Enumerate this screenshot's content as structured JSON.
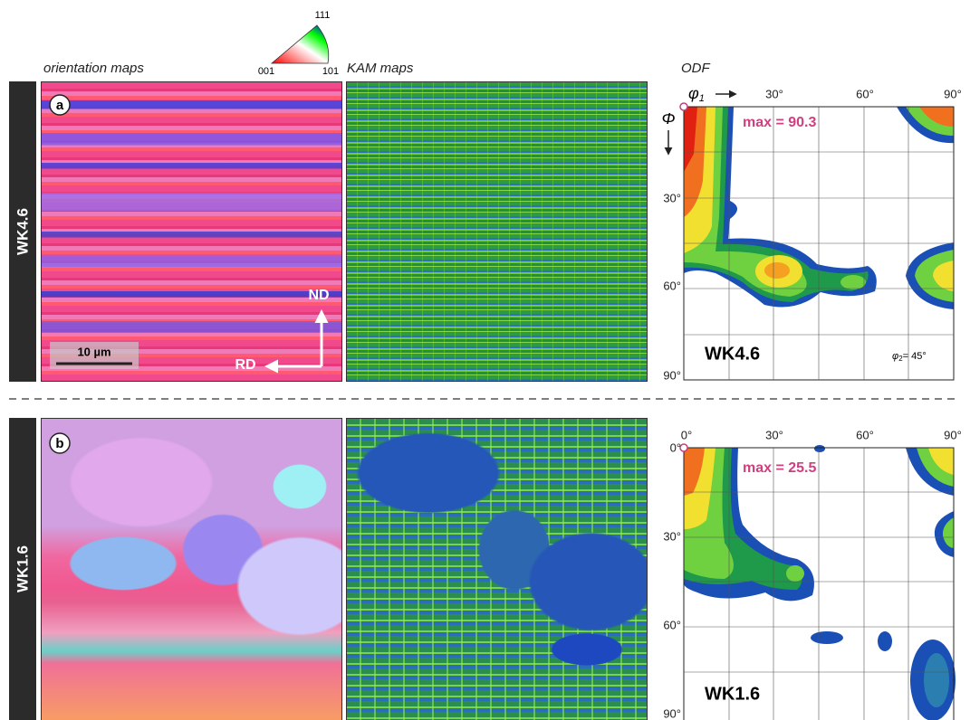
{
  "headers": {
    "orientation": "orientation maps",
    "kam": "KAM maps",
    "odf": "ODF"
  },
  "ipf": {
    "top": "111",
    "left": "001",
    "right": "101"
  },
  "panels": [
    {
      "letter": "a",
      "sample": "WK4.6",
      "scale_bar": "10 µm",
      "nd": "ND",
      "rd": "RD",
      "odf": {
        "phi1": "φ",
        "phi1_sub": "1",
        "Phi": "Φ",
        "x_labels": [
          "30°",
          "60°",
          "90°"
        ],
        "y_labels": [
          "30°",
          "60°",
          "90°"
        ],
        "max": "max = 90.3",
        "label": "WK4.6",
        "phi2": "φ",
        "phi2_sub": "2",
        "phi2_rest": "= 45°"
      }
    },
    {
      "letter": "b",
      "sample": "WK1.6",
      "odf": {
        "x_labels": [
          "0°",
          "30°",
          "60°",
          "90°"
        ],
        "y_labels": [
          "0°",
          "30°",
          "60°",
          "90°"
        ],
        "max": "max = 25.5",
        "label": "WK1.6"
      }
    }
  ]
}
